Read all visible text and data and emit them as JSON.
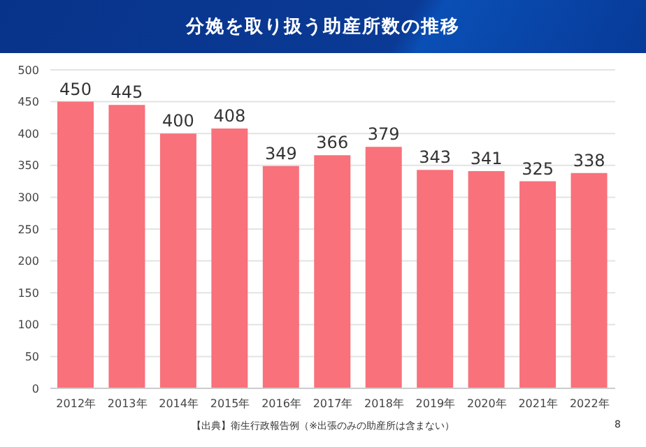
{
  "chart_data": {
    "type": "bar",
    "title": "分娩を取り扱う助産所数の推移",
    "categories": [
      "2012年",
      "2013年",
      "2014年",
      "2015年",
      "2016年",
      "2017年",
      "2018年",
      "2019年",
      "2020年",
      "2021年",
      "2022年"
    ],
    "values": [
      450,
      445,
      400,
      408,
      349,
      366,
      379,
      343,
      341,
      325,
      338
    ],
    "color": "#f8717b",
    "ylim": [
      0,
      500
    ],
    "yticks": [
      0,
      50,
      100,
      150,
      200,
      250,
      300,
      350,
      400,
      450,
      500
    ],
    "grid": "y",
    "data_labels": true,
    "annotations": [
      "【出典】衛生行政報告例（※出張のみの助産所は含まない）",
      "8"
    ]
  }
}
